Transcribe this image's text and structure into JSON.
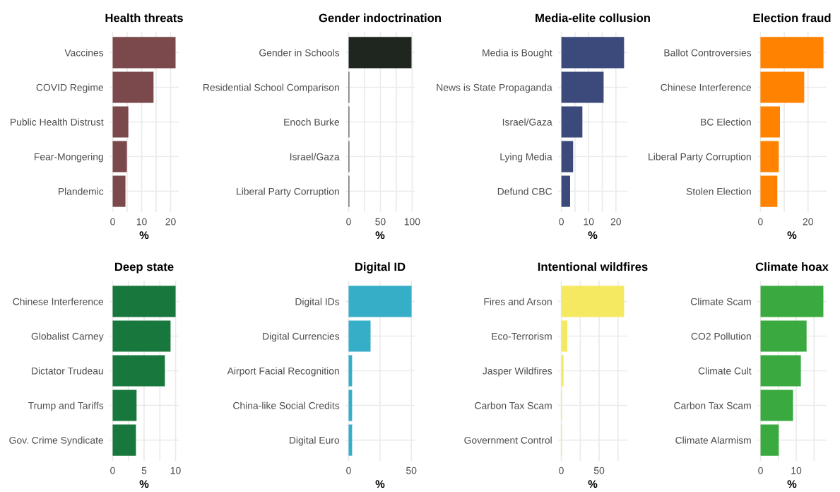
{
  "chart_data": [
    {
      "type": "bar",
      "orientation": "horizontal",
      "title": "Health threats",
      "xlabel": "%",
      "categories": [
        "Vaccines",
        "COVID Regime",
        "Public Health Distrust",
        "Fear-Mongering",
        "Plandemic"
      ],
      "values": [
        21.7,
        14.1,
        5.4,
        4.9,
        4.4
      ],
      "color": "#7b484b",
      "xlim": [
        -1.1,
        22.8
      ],
      "xticks": [
        0,
        {
          "value": 5,
          "label": null
        },
        10,
        {
          "value": 15,
          "label": null
        },
        20
      ],
      "grid": true
    },
    {
      "type": "bar",
      "orientation": "horizontal",
      "title": "Gender indoctrination",
      "xlabel": "%",
      "categories": [
        "Gender in Schools",
        "Residential School Comparison",
        "Enoch Burke",
        "Israel/Gaza",
        "Liberal Party Corruption"
      ],
      "values": [
        99,
        1,
        1,
        1,
        1
      ],
      "color": "#1f261f",
      "xlim": [
        -5,
        104
      ],
      "xticks": [
        0,
        {
          "value": 25,
          "label": null
        },
        50,
        {
          "value": 75,
          "label": null
        },
        100
      ],
      "grid": true
    },
    {
      "type": "bar",
      "orientation": "horizontal",
      "title": "Media-elite collusion",
      "xlabel": "%",
      "categories": [
        "Media is Bought",
        "News is State Propaganda",
        "Israel/Gaza",
        "Lying Media",
        "Defund CBC"
      ],
      "values": [
        23.0,
        15.5,
        7.7,
        4.3,
        3.2
      ],
      "color": "#3b4a7b",
      "xlim": [
        -1.2,
        24.2
      ],
      "xticks": [
        0,
        {
          "value": 5,
          "label": null
        },
        10,
        {
          "value": 15,
          "label": null
        },
        20
      ],
      "grid": true
    },
    {
      "type": "bar",
      "orientation": "horizontal",
      "title": "Election fraud",
      "xlabel": "%",
      "categories": [
        "Ballot Controversies",
        "Chinese Interference",
        "BC Election",
        "Liberal Party Corruption",
        "Stolen Election"
      ],
      "values": [
        26.5,
        18.4,
        8.2,
        7.7,
        7.1
      ],
      "color": "#ff8200",
      "xlim": [
        -1.3,
        27.8
      ],
      "xticks": [
        0,
        {
          "value": 10,
          "label": null
        },
        20
      ],
      "grid": true
    },
    {
      "type": "bar",
      "orientation": "horizontal",
      "title": "Deep state",
      "xlabel": "%",
      "categories": [
        "Chinese Interference",
        "Globalist Carney",
        "Dictator Trudeau",
        "Trump and Tariffs",
        "Gov. Crime Syndicate"
      ],
      "values": [
        10.0,
        9.2,
        8.3,
        3.8,
        3.7
      ],
      "color": "#18773c",
      "xlim": [
        -0.5,
        10.5
      ],
      "xticks": [
        0,
        {
          "value": 2.5,
          "label": null
        },
        5,
        {
          "value": 7.5,
          "label": null
        },
        10
      ],
      "grid": true
    },
    {
      "type": "bar",
      "orientation": "horizontal",
      "title": "Digital ID",
      "xlabel": "%",
      "categories": [
        "Digital IDs",
        "Digital Currencies",
        "Airport Facial Recognition",
        "China-like Social Credits",
        "Digital Euro"
      ],
      "values": [
        50.2,
        17.5,
        2.8,
        2.8,
        2.8
      ],
      "color": "#37aec8",
      "xlim": [
        -2.5,
        52.7
      ],
      "xticks": [
        0,
        {
          "value": 25,
          "label": null
        },
        50
      ],
      "grid": true
    },
    {
      "type": "bar",
      "orientation": "horizontal",
      "title": "Intentional wildfires",
      "xlabel": "%",
      "categories": [
        "Fires and Arson",
        "Eco-Terrorism",
        "Jasper Wildfires",
        "Carbon Tax Scam",
        "Government Control"
      ],
      "values": [
        83,
        8,
        3,
        1,
        1
      ],
      "color": "#f5e961",
      "xlim": [
        -4.2,
        87.3
      ],
      "xticks": [
        0,
        {
          "value": 25,
          "label": null
        },
        50,
        {
          "value": 75,
          "label": null
        }
      ],
      "grid": true
    },
    {
      "type": "bar",
      "orientation": "horizontal",
      "title": "Climate hoax",
      "xlabel": "%",
      "categories": [
        "Climate Scam",
        "CO2 Pollution",
        "Climate Cult",
        "Carbon Tax Scam",
        "Climate Alarmism"
      ],
      "values": [
        17.6,
        12.9,
        11.3,
        9.1,
        5.1
      ],
      "color": "#3aaa40",
      "xlim": [
        -0.9,
        18.5
      ],
      "xticks": [
        0,
        {
          "value": 5,
          "label": null
        },
        10,
        {
          "value": 15,
          "label": null
        }
      ],
      "grid": true
    }
  ]
}
